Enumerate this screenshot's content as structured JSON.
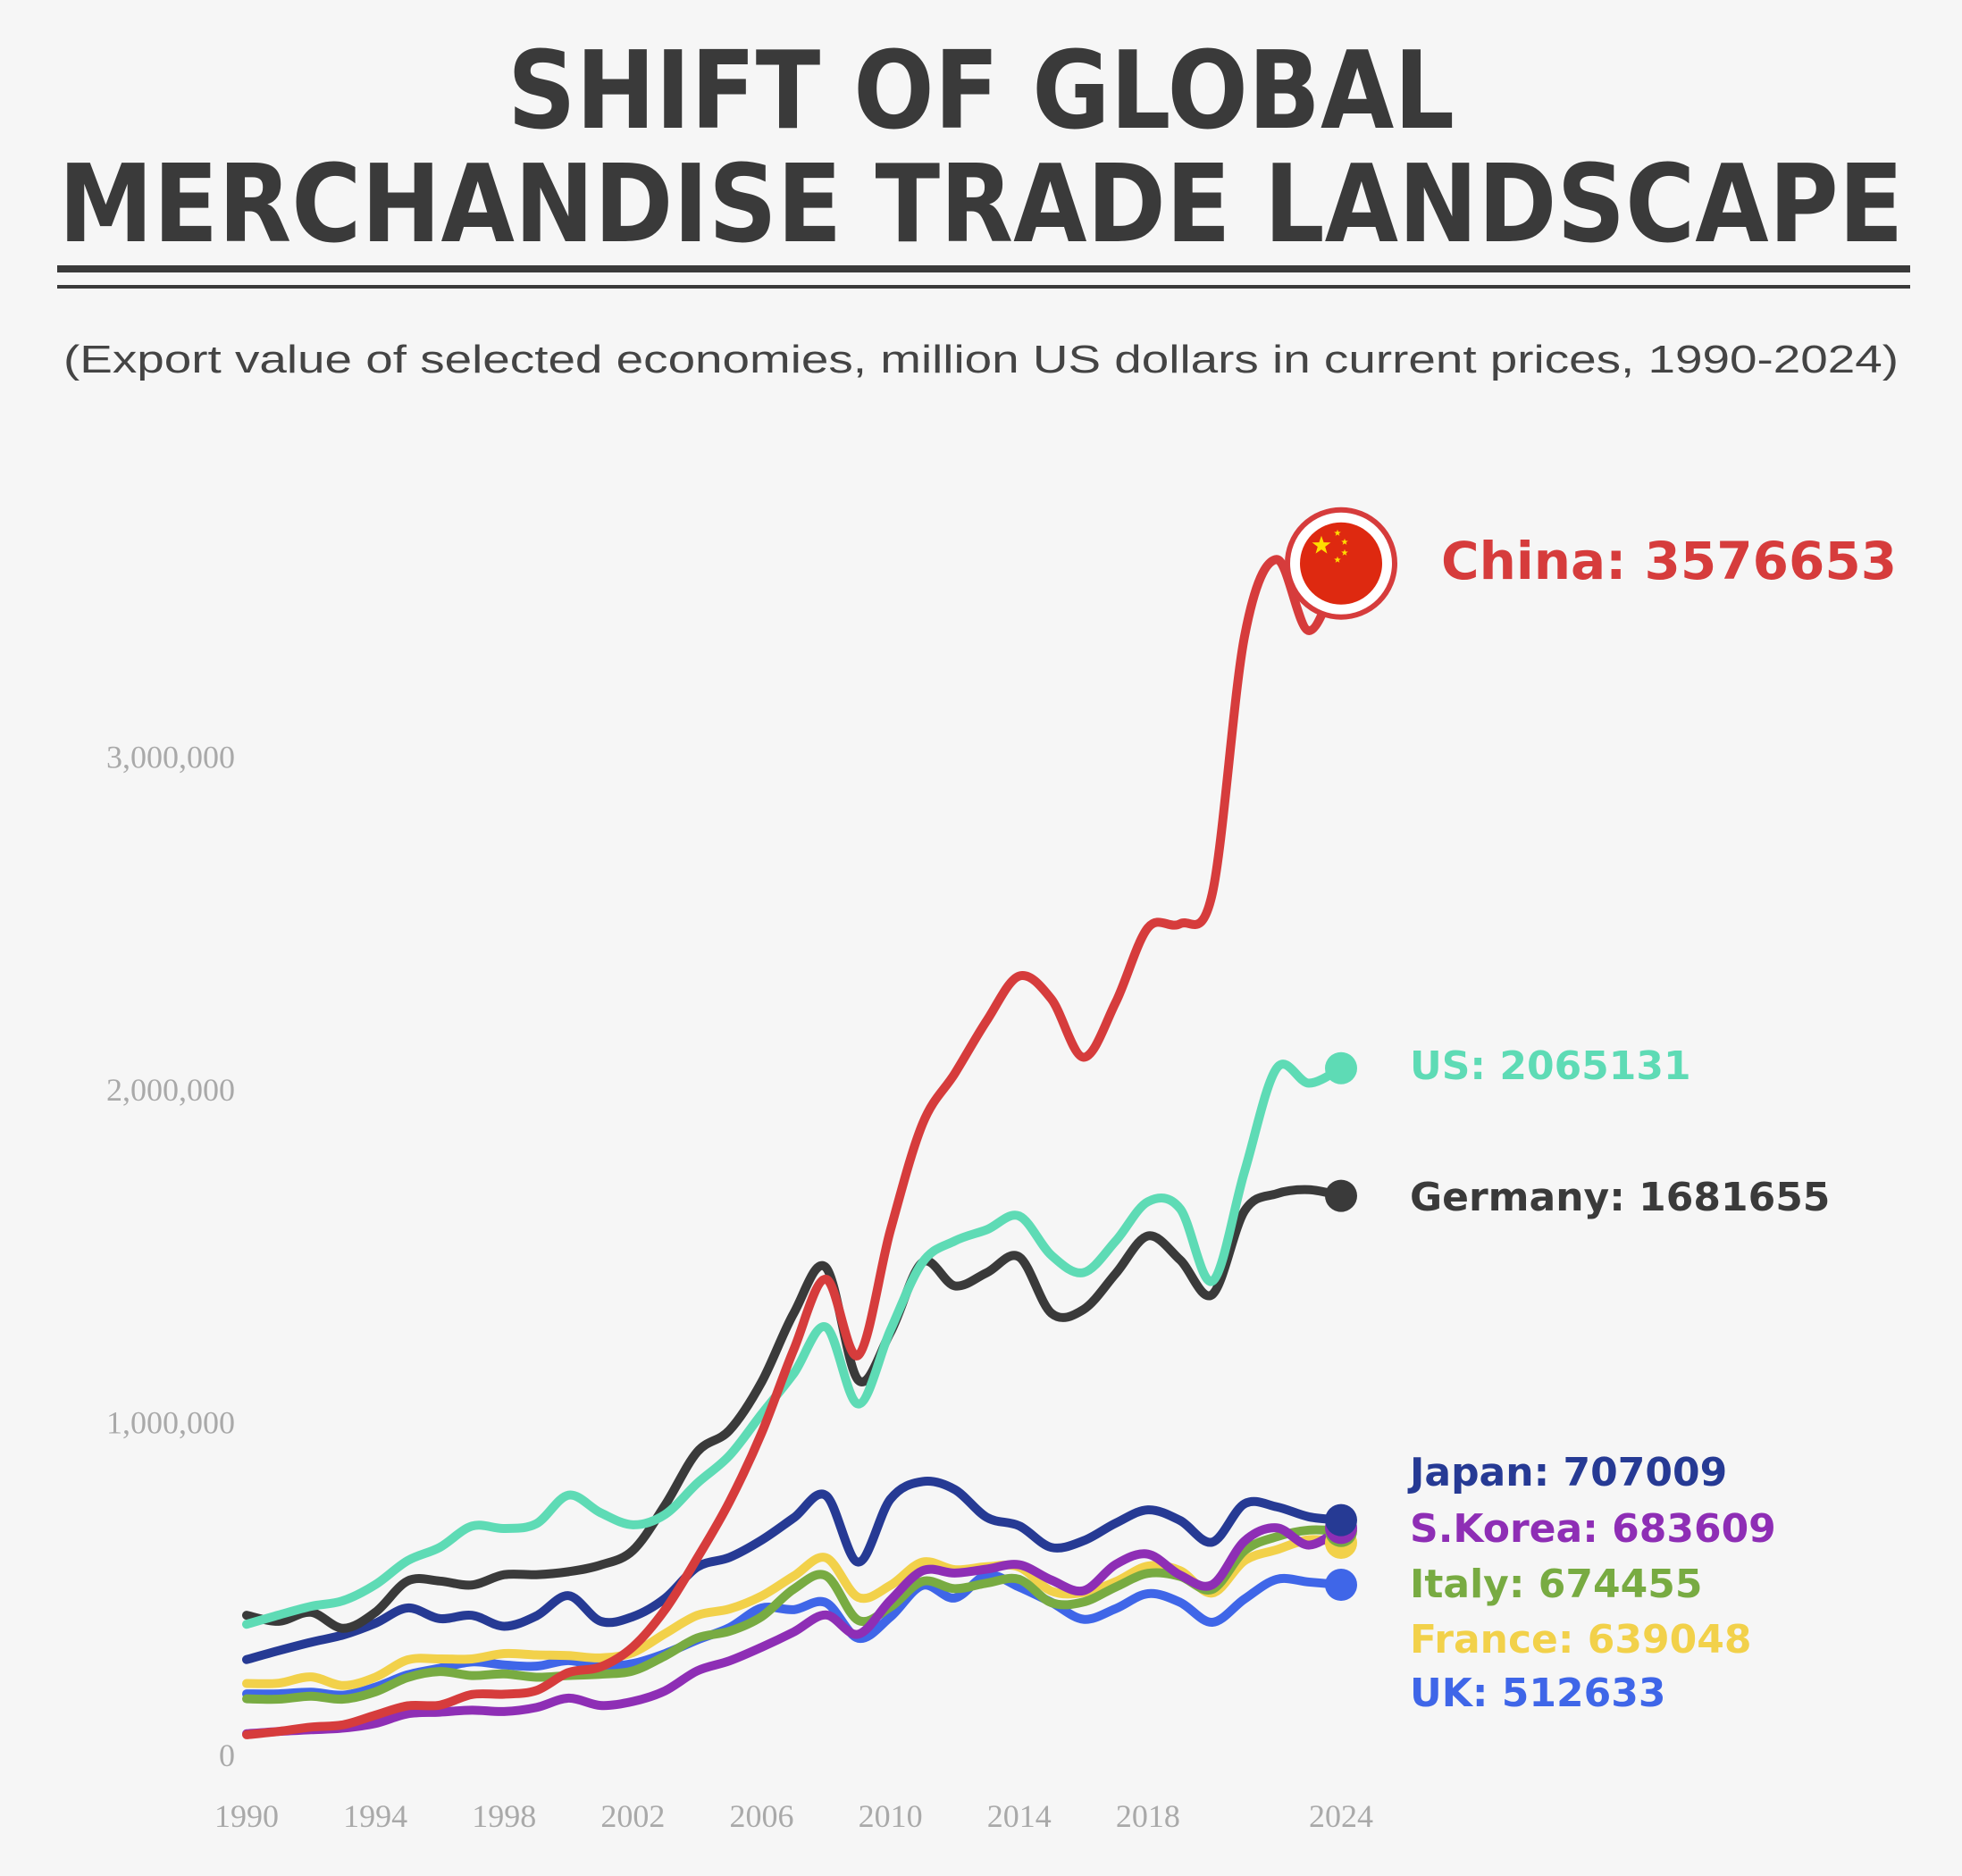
{
  "chart_data": {
    "type": "line",
    "title_line1": "SHIFT OF GLOBAL",
    "title_line2": "MERCHANDISE TRADE LANDSCAPE",
    "subtitle": "(Export value of selected economies, million US dollars in current prices, 1990-2024)",
    "xlabel": "",
    "ylabel": "",
    "ylim": [
      0,
      3600000
    ],
    "xlim": [
      1990,
      2024
    ],
    "grid": false,
    "legend": "end-of-line labels, right",
    "y_ticks": [
      {
        "value": 0,
        "label": "0"
      },
      {
        "value": 1000000,
        "label": "1,000,000"
      },
      {
        "value": 2000000,
        "label": "2,000,000"
      },
      {
        "value": 3000000,
        "label": "3,000,000"
      }
    ],
    "x_ticks": [
      {
        "value": 1990,
        "label": "1990"
      },
      {
        "value": 1994,
        "label": "1994"
      },
      {
        "value": 1998,
        "label": "1998"
      },
      {
        "value": 2002,
        "label": "2002"
      },
      {
        "value": 2006,
        "label": "2006"
      },
      {
        "value": 2010,
        "label": "2010"
      },
      {
        "value": 2014,
        "label": "2014"
      },
      {
        "value": 2018,
        "label": "2018"
      },
      {
        "value": 2024,
        "label": "2024"
      }
    ],
    "x": [
      1990,
      1991,
      1992,
      1993,
      1994,
      1995,
      1996,
      1997,
      1998,
      1999,
      2000,
      2001,
      2002,
      2003,
      2004,
      2005,
      2006,
      2007,
      2008,
      2009,
      2010,
      2011,
      2012,
      2013,
      2014,
      2015,
      2016,
      2017,
      2018,
      2019,
      2020,
      2021,
      2022,
      2023,
      2024
    ],
    "series": [
      {
        "name": "UK",
        "label": "UK: 512633",
        "color": "#3f66e8",
        "values": [
          185000,
          185000,
          190000,
          181000,
          205000,
          242000,
          262000,
          281000,
          272000,
          268000,
          285000,
          268000,
          276000,
          306000,
          347000,
          384000,
          443000,
          438000,
          459000,
          352000,
          416000,
          511000,
          473000,
          542000,
          506000,
          460000,
          409000,
          441000,
          486000,
          460000,
          400000,
          470000,
          529000,
          521000,
          512633
        ]
      },
      {
        "name": "France",
        "label": "France: 639048",
        "color": "#f2d14a",
        "values": [
          216000,
          217000,
          236000,
          210000,
          235000,
          287000,
          290000,
          290000,
          306000,
          302000,
          300000,
          293000,
          309000,
          366000,
          421000,
          440000,
          479000,
          539000,
          594000,
          475000,
          511000,
          581000,
          558000,
          567000,
          566000,
          494000,
          489000,
          522000,
          569000,
          555000,
          488000,
          585000,
          618000,
          648000,
          639048
        ]
      },
      {
        "name": "Italy",
        "label": "Italy: 674455",
        "color": "#78ab42",
        "values": [
          170000,
          169000,
          178000,
          169000,
          191000,
          234000,
          252000,
          240000,
          245000,
          235000,
          240000,
          244000,
          254000,
          299000,
          353000,
          373000,
          417000,
          500000,
          540000,
          406000,
          446000,
          523000,
          501000,
          518000,
          529000,
          459000,
          461000,
          506000,
          547000,
          538000,
          499000,
          615000,
          657000,
          677000,
          674455
        ]
      },
      {
        "name": "S.Korea",
        "label": "S.Korea: 683609",
        "color": "#8e2eb5",
        "values": [
          65000,
          72000,
          77000,
          82000,
          96000,
          125000,
          130000,
          136000,
          132000,
          144000,
          172000,
          150000,
          162000,
          194000,
          254000,
          284000,
          325000,
          371000,
          422000,
          364000,
          466000,
          555000,
          548000,
          560000,
          573000,
          527000,
          495000,
          574000,
          605000,
          542000,
          513000,
          644000,
          684000,
          632000,
          683609
        ]
      },
      {
        "name": "Japan",
        "label": "Japan: 707009",
        "color": "#263a94",
        "values": [
          288000,
          315000,
          340000,
          362000,
          397000,
          443000,
          411000,
          421000,
          388000,
          419000,
          480000,
          403000,
          417000,
          472000,
          566000,
          595000,
          647000,
          714000,
          781000,
          581000,
          770000,
          823000,
          799000,
          715000,
          690000,
          625000,
          645000,
          698000,
          738000,
          706000,
          641000,
          756000,
          747000,
          717000,
          707009
        ]
      },
      {
        "name": "Germany",
        "label": "Germany: 1681655",
        "color": "#3a3a3a",
        "values": [
          421000,
          403000,
          430000,
          382000,
          430000,
          524000,
          524000,
          512000,
          543000,
          543000,
          552000,
          572000,
          616000,
          752000,
          912000,
          977000,
          1122000,
          1329000,
          1466000,
          1128000,
          1271000,
          1482000,
          1411000,
          1451000,
          1498000,
          1329000,
          1340000,
          1448000,
          1561000,
          1489000,
          1385000,
          1636000,
          1688000,
          1700000,
          1681655
        ]
      },
      {
        "name": "US",
        "label": "US: 2065131",
        "color": "#5edbb5",
        "values": [
          394000,
          422000,
          448000,
          465000,
          513000,
          585000,
          625000,
          689000,
          682000,
          696000,
          782000,
          729000,
          693000,
          724000,
          818000,
          901000,
          1026000,
          1148000,
          1287000,
          1056000,
          1278000,
          1482000,
          1546000,
          1580000,
          1621000,
          1503000,
          1451000,
          1546000,
          1664000,
          1643000,
          1425000,
          1754000,
          2065000,
          2020000,
          2065131
        ]
      },
      {
        "name": "China",
        "label": "China: 3576653",
        "color": "#d63c3c",
        "values": [
          62000,
          72000,
          85000,
          92000,
          121000,
          149000,
          151000,
          183000,
          184000,
          195000,
          249000,
          266000,
          326000,
          438000,
          593000,
          762000,
          969000,
          1220000,
          1431000,
          1202000,
          1578000,
          1898000,
          2049000,
          2209000,
          2342000,
          2273000,
          2098000,
          2263000,
          2487000,
          2499000,
          2590000,
          3362000,
          3594000,
          3380000,
          3576653
        ]
      }
    ],
    "china_marker_icon": "china-flag-icon",
    "flag_colors": {
      "red": "#de2910",
      "star": "#ffde00"
    }
  }
}
